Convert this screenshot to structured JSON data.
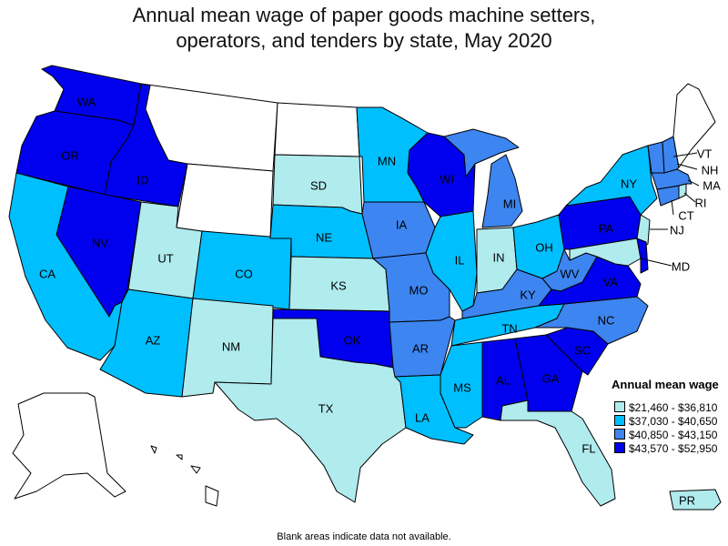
{
  "title_line1": "Annual mean wage of paper goods machine setters,",
  "title_line2": "operators, and tenders by state, May 2020",
  "legend": {
    "title": "Annual mean wage",
    "items": [
      {
        "label": "$21,460 - $36,810",
        "color": "#b0ebee"
      },
      {
        "label": "$37,030 - $40,650",
        "color": "#00bfff"
      },
      {
        "label": "$40,850 - $43,150",
        "color": "#3d85f0"
      },
      {
        "label": "$43,570 - $52,950",
        "color": "#0000ee"
      }
    ]
  },
  "footnote": "Blank areas indicate data not available.",
  "colors": {
    "tier1": "#b0ebee",
    "tier2": "#00bfff",
    "tier3": "#3d85f0",
    "tier4": "#0000ee",
    "blank": "#ffffff"
  },
  "states": {
    "WA": {
      "label": "WA",
      "tier": "tier4"
    },
    "OR": {
      "label": "OR",
      "tier": "tier4"
    },
    "ID": {
      "label": "ID",
      "tier": "tier4"
    },
    "NV": {
      "label": "NV",
      "tier": "tier4"
    },
    "CA": {
      "label": "CA",
      "tier": "tier2"
    },
    "UT": {
      "label": "UT",
      "tier": "tier1"
    },
    "AZ": {
      "label": "AZ",
      "tier": "tier2"
    },
    "MT": {
      "label": "",
      "tier": "blank"
    },
    "WY": {
      "label": "",
      "tier": "blank"
    },
    "CO": {
      "label": "CO",
      "tier": "tier2"
    },
    "NM": {
      "label": "NM",
      "tier": "tier1"
    },
    "ND": {
      "label": "",
      "tier": "blank"
    },
    "SD": {
      "label": "SD",
      "tier": "tier1"
    },
    "NE": {
      "label": "NE",
      "tier": "tier2"
    },
    "KS": {
      "label": "KS",
      "tier": "tier1"
    },
    "OK": {
      "label": "OK",
      "tier": "tier4"
    },
    "TX": {
      "label": "TX",
      "tier": "tier1"
    },
    "MN": {
      "label": "MN",
      "tier": "tier2"
    },
    "IA": {
      "label": "IA",
      "tier": "tier3"
    },
    "MO": {
      "label": "MO",
      "tier": "tier3"
    },
    "AR": {
      "label": "AR",
      "tier": "tier3"
    },
    "LA": {
      "label": "LA",
      "tier": "tier2"
    },
    "WI": {
      "label": "WI",
      "tier": "tier4"
    },
    "IL": {
      "label": "IL",
      "tier": "tier2"
    },
    "MI": {
      "label": "MI",
      "tier": "tier3"
    },
    "IN": {
      "label": "IN",
      "tier": "tier1"
    },
    "OH": {
      "label": "OH",
      "tier": "tier2"
    },
    "KY": {
      "label": "KY",
      "tier": "tier3"
    },
    "TN": {
      "label": "TN",
      "tier": "tier2"
    },
    "MS": {
      "label": "MS",
      "tier": "tier2"
    },
    "AL": {
      "label": "AL",
      "tier": "tier4"
    },
    "GA": {
      "label": "GA",
      "tier": "tier4"
    },
    "FL": {
      "label": "FL",
      "tier": "tier1"
    },
    "SC": {
      "label": "SC",
      "tier": "tier4"
    },
    "NC": {
      "label": "NC",
      "tier": "tier3"
    },
    "VA": {
      "label": "VA",
      "tier": "tier4"
    },
    "WV": {
      "label": "WV",
      "tier": "tier3"
    },
    "PA": {
      "label": "PA",
      "tier": "tier4"
    },
    "NY": {
      "label": "NY",
      "tier": "tier2"
    },
    "ME": {
      "label": "",
      "tier": "blank"
    },
    "VT": {
      "label": "VT",
      "tier": "tier3"
    },
    "NH": {
      "label": "NH",
      "tier": "tier3"
    },
    "MA": {
      "label": "MA",
      "tier": "tier3"
    },
    "RI": {
      "label": "RI",
      "tier": "tier1"
    },
    "CT": {
      "label": "CT",
      "tier": "tier3"
    },
    "NJ": {
      "label": "NJ",
      "tier": "tier1"
    },
    "DE": {
      "label": "",
      "tier": "tier4"
    },
    "MD": {
      "label": "MD",
      "tier": "tier1"
    },
    "AK": {
      "label": "",
      "tier": "blank"
    },
    "HI": {
      "label": "",
      "tier": "blank"
    },
    "PR": {
      "label": "PR",
      "tier": "tier1"
    }
  }
}
